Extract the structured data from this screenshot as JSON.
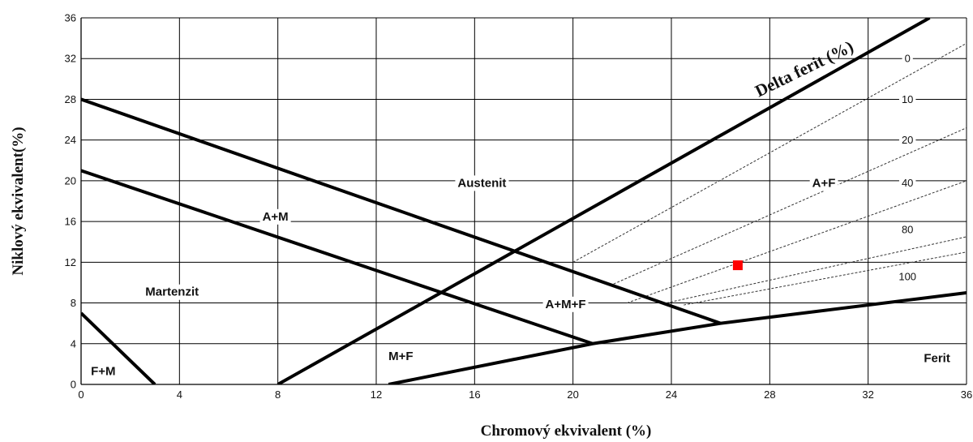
{
  "chart_data": {
    "type": "line",
    "title": "",
    "xlabel": "Chromový ekvivalent (%)",
    "ylabel": "Niklový ekvivalent(%)",
    "xlim": [
      0,
      36
    ],
    "ylim": [
      0,
      36
    ],
    "x_ticks": [
      "0",
      "4",
      "8",
      "12",
      "16",
      "20",
      "24",
      "28",
      "32",
      "36"
    ],
    "y_ticks": [
      "0",
      "4",
      "8",
      "12",
      "16",
      "20",
      "24",
      "28",
      "32",
      "36"
    ],
    "grid": true,
    "boundary_lines": [
      {
        "id": "delta-ferrite",
        "points": [
          [
            8,
            0
          ],
          [
            34.5,
            36
          ]
        ]
      },
      {
        "id": "austenite-upper",
        "points": [
          [
            0,
            28
          ],
          [
            26,
            6
          ]
        ]
      },
      {
        "id": "am-boundary",
        "points": [
          [
            0,
            21
          ],
          [
            20.8,
            4
          ]
        ]
      },
      {
        "id": "ferrite-boundary",
        "points": [
          [
            12.5,
            0
          ],
          [
            20.8,
            4
          ],
          [
            26,
            6
          ],
          [
            36,
            9
          ]
        ]
      },
      {
        "id": "fm-boundary",
        "points": [
          [
            0,
            7
          ],
          [
            3,
            0
          ]
        ]
      }
    ],
    "ferrite_lines": [
      {
        "label": "0",
        "points": [
          [
            20,
            12
          ],
          [
            36,
            33.5
          ]
        ]
      },
      {
        "label": "10",
        "points": [
          [
            21.5,
            9.7
          ],
          [
            36,
            25.2
          ]
        ]
      },
      {
        "label": "20",
        "points": [
          [
            22.2,
            8
          ],
          [
            36,
            20
          ]
        ]
      },
      {
        "label": "40",
        "points": [
          [
            23.8,
            8
          ],
          [
            36,
            14.5
          ]
        ]
      },
      {
        "label": "80",
        "points": [
          [
            24.5,
            7.8
          ],
          [
            36,
            13
          ]
        ]
      }
    ],
    "ferrite_labels": [
      {
        "text": "0",
        "x": 33.6,
        "y": 32
      },
      {
        "text": "10",
        "x": 33.6,
        "y": 28
      },
      {
        "text": "20",
        "x": 33.6,
        "y": 24
      },
      {
        "text": "40",
        "x": 33.6,
        "y": 19.8
      },
      {
        "text": "80",
        "x": 33.6,
        "y": 15.2
      },
      {
        "text": "100",
        "x": 33.6,
        "y": 10.6
      }
    ],
    "regions": [
      {
        "text": "Austenit",
        "x": 16.3,
        "y": 19.8
      },
      {
        "text": "A+M",
        "x": 7.9,
        "y": 16.5
      },
      {
        "text": "Martenzit",
        "x": 3.7,
        "y": 9.1
      },
      {
        "text": "A+M+F",
        "x": 19.7,
        "y": 7.9
      },
      {
        "text": "M+F",
        "x": 13.0,
        "y": 2.8
      },
      {
        "text": "F+M",
        "x": 0.9,
        "y": 1.3
      },
      {
        "text": "A+F",
        "x": 30.2,
        "y": 19.8
      },
      {
        "text": "Ferit",
        "x": 34.8,
        "y": 2.6
      }
    ],
    "delta_label": {
      "text": "Delta ferit (%)",
      "x": 29.5,
      "y": 30.5,
      "angle": 53.6
    },
    "marker": {
      "x": 26.7,
      "y": 11.7,
      "color": "#ff0000"
    }
  }
}
